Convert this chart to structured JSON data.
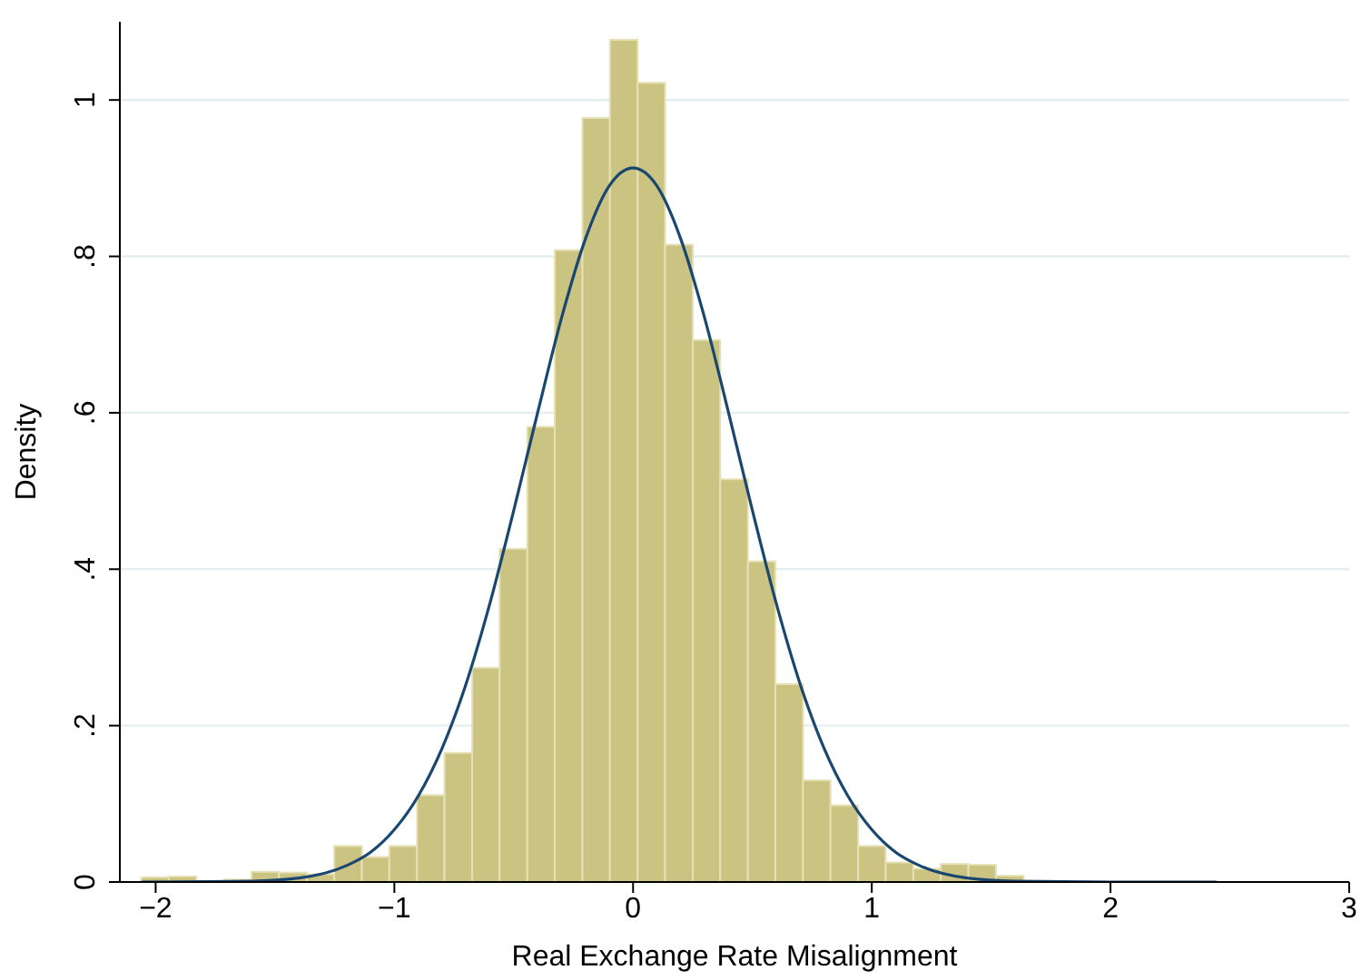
{
  "chart_data": {
    "type": "histogram",
    "xlabel": "Real Exchange Rate Misalignment",
    "ylabel": "Density",
    "bins": [
      -2.06,
      -1.945,
      -1.829,
      -1.714,
      -1.598,
      -1.483,
      -1.367,
      -1.252,
      -1.136,
      -1.021,
      -0.905,
      -0.79,
      -0.674,
      -0.559,
      -0.443,
      -0.328,
      -0.212,
      -0.097,
      0.019,
      0.134,
      0.25,
      0.365,
      0.481,
      0.596,
      0.712,
      0.827,
      0.943,
      1.058,
      1.174,
      1.289,
      1.405,
      1.52,
      1.636,
      1.751,
      1.867,
      1.982,
      2.098,
      2.213,
      2.329,
      2.444
    ],
    "values": [
      0.006,
      0.007,
      null,
      0.003,
      0.013,
      0.012,
      0.01,
      0.046,
      0.032,
      0.046,
      0.111,
      0.165,
      0.274,
      0.426,
      0.582,
      0.808,
      0.977,
      1.077,
      1.022,
      0.815,
      0.693,
      0.515,
      0.41,
      0.253,
      0.13,
      0.098,
      0.046,
      0.025,
      0.017,
      0.023,
      0.022,
      0.008,
      0,
      null,
      0,
      0,
      null,
      null,
      null
    ],
    "color": "#cbc382",
    "series": [
      {
        "type": "line",
        "color": "#1a476f",
        "x": [
          -2.06,
          -1.6,
          -1.4,
          -1.2,
          -1.1,
          -1.0,
          -0.9,
          -0.8,
          -0.7,
          -0.6,
          -0.5,
          -0.4,
          -0.3,
          -0.2,
          -0.1,
          0,
          0.1,
          0.2,
          0.3,
          0.4,
          0.5,
          0.6,
          0.7,
          0.8,
          0.9,
          1.0,
          1.1,
          1.2,
          1.4,
          1.6,
          2.0,
          2.444
        ],
        "values": [
          0,
          0.001,
          0.005,
          0.021,
          0.038,
          0.067,
          0.11,
          0.171,
          0.253,
          0.356,
          0.475,
          0.6,
          0.721,
          0.822,
          0.89,
          0.913,
          0.89,
          0.822,
          0.721,
          0.6,
          0.475,
          0.356,
          0.253,
          0.171,
          0.11,
          0.067,
          0.038,
          0.021,
          0.005,
          0.001,
          0,
          0
        ]
      }
    ],
    "xlim": [
      -2.15,
      3
    ],
    "xticks": [
      {
        "value": -2,
        "label": "−2"
      },
      {
        "value": -1,
        "label": "−1"
      },
      0,
      1,
      2,
      3
    ],
    "ylim": [
      0,
      1.1
    ],
    "yticks": [
      0,
      {
        "value": 0.2,
        "label": ".2"
      },
      {
        "value": 0.4,
        "label": ".4"
      },
      {
        "value": 0.6,
        "label": ".6"
      },
      {
        "value": 0.8,
        "label": ".8"
      },
      1
    ],
    "grid": "y",
    "marker": "none",
    "line_style": "solid"
  }
}
